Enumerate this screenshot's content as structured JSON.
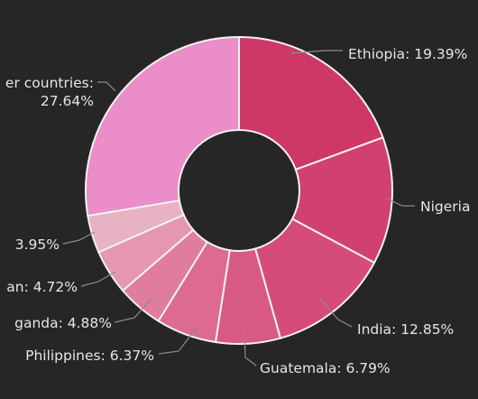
{
  "chart_data": {
    "type": "pie",
    "style": "donut",
    "slices": [
      {
        "label": "Ethiopia",
        "value": 19.39,
        "text": "Ethiopia: 19.39%",
        "color": "#cd3866"
      },
      {
        "label": "Nigeria",
        "value": 13.41,
        "text": "Nigeria",
        "color": "#d14170"
      },
      {
        "label": "India",
        "value": 12.85,
        "text": "India: 12.85%",
        "color": "#d54b79"
      },
      {
        "label": "Guatemala",
        "value": 6.79,
        "text": "Guatemala: 6.79%",
        "color": "#d85a84"
      },
      {
        "label": "Philippines",
        "value": 6.37,
        "text": "Philippines: 6.37%",
        "color": "#dd6a90"
      },
      {
        "label": "Uganda",
        "value": 4.88,
        "text": "ganda: 4.88%",
        "color": "#e07d9d"
      },
      {
        "label": "Sudan",
        "value": 4.72,
        "text": "an: 4.72%",
        "color": "#e497ae"
      },
      {
        "label": "",
        "value": 3.95,
        "text": "3.95%",
        "color": "#e7b2c1"
      },
      {
        "label": "Other countries",
        "value": 27.64,
        "text": "er countries:",
        "text2": "27.64%",
        "color": "#ea8dc8"
      }
    ],
    "colors": {
      "background": "#262626",
      "slice_border": "#f2f2f2",
      "label_text": "#e6e6e6",
      "leader_line": "#8c8c8c"
    }
  }
}
